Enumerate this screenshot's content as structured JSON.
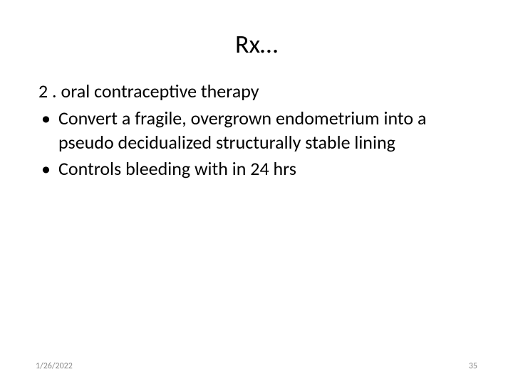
{
  "slide": {
    "title": "Rx…",
    "heading": " 2 . oral contraceptive therapy",
    "bullets": [
      "Convert a fragile, overgrown endometrium into a pseudo decidualized structurally stable lining",
      "Controls bleeding with in 24 hrs"
    ],
    "footer_date": "1/26/2022",
    "footer_page": "35",
    "colors": {
      "background": "#ffffff",
      "text": "#000000",
      "footer_text": "#888888"
    },
    "fonts": {
      "title_size": 36,
      "body_size": 26,
      "footer_size": 12,
      "family": "Calibri"
    }
  }
}
